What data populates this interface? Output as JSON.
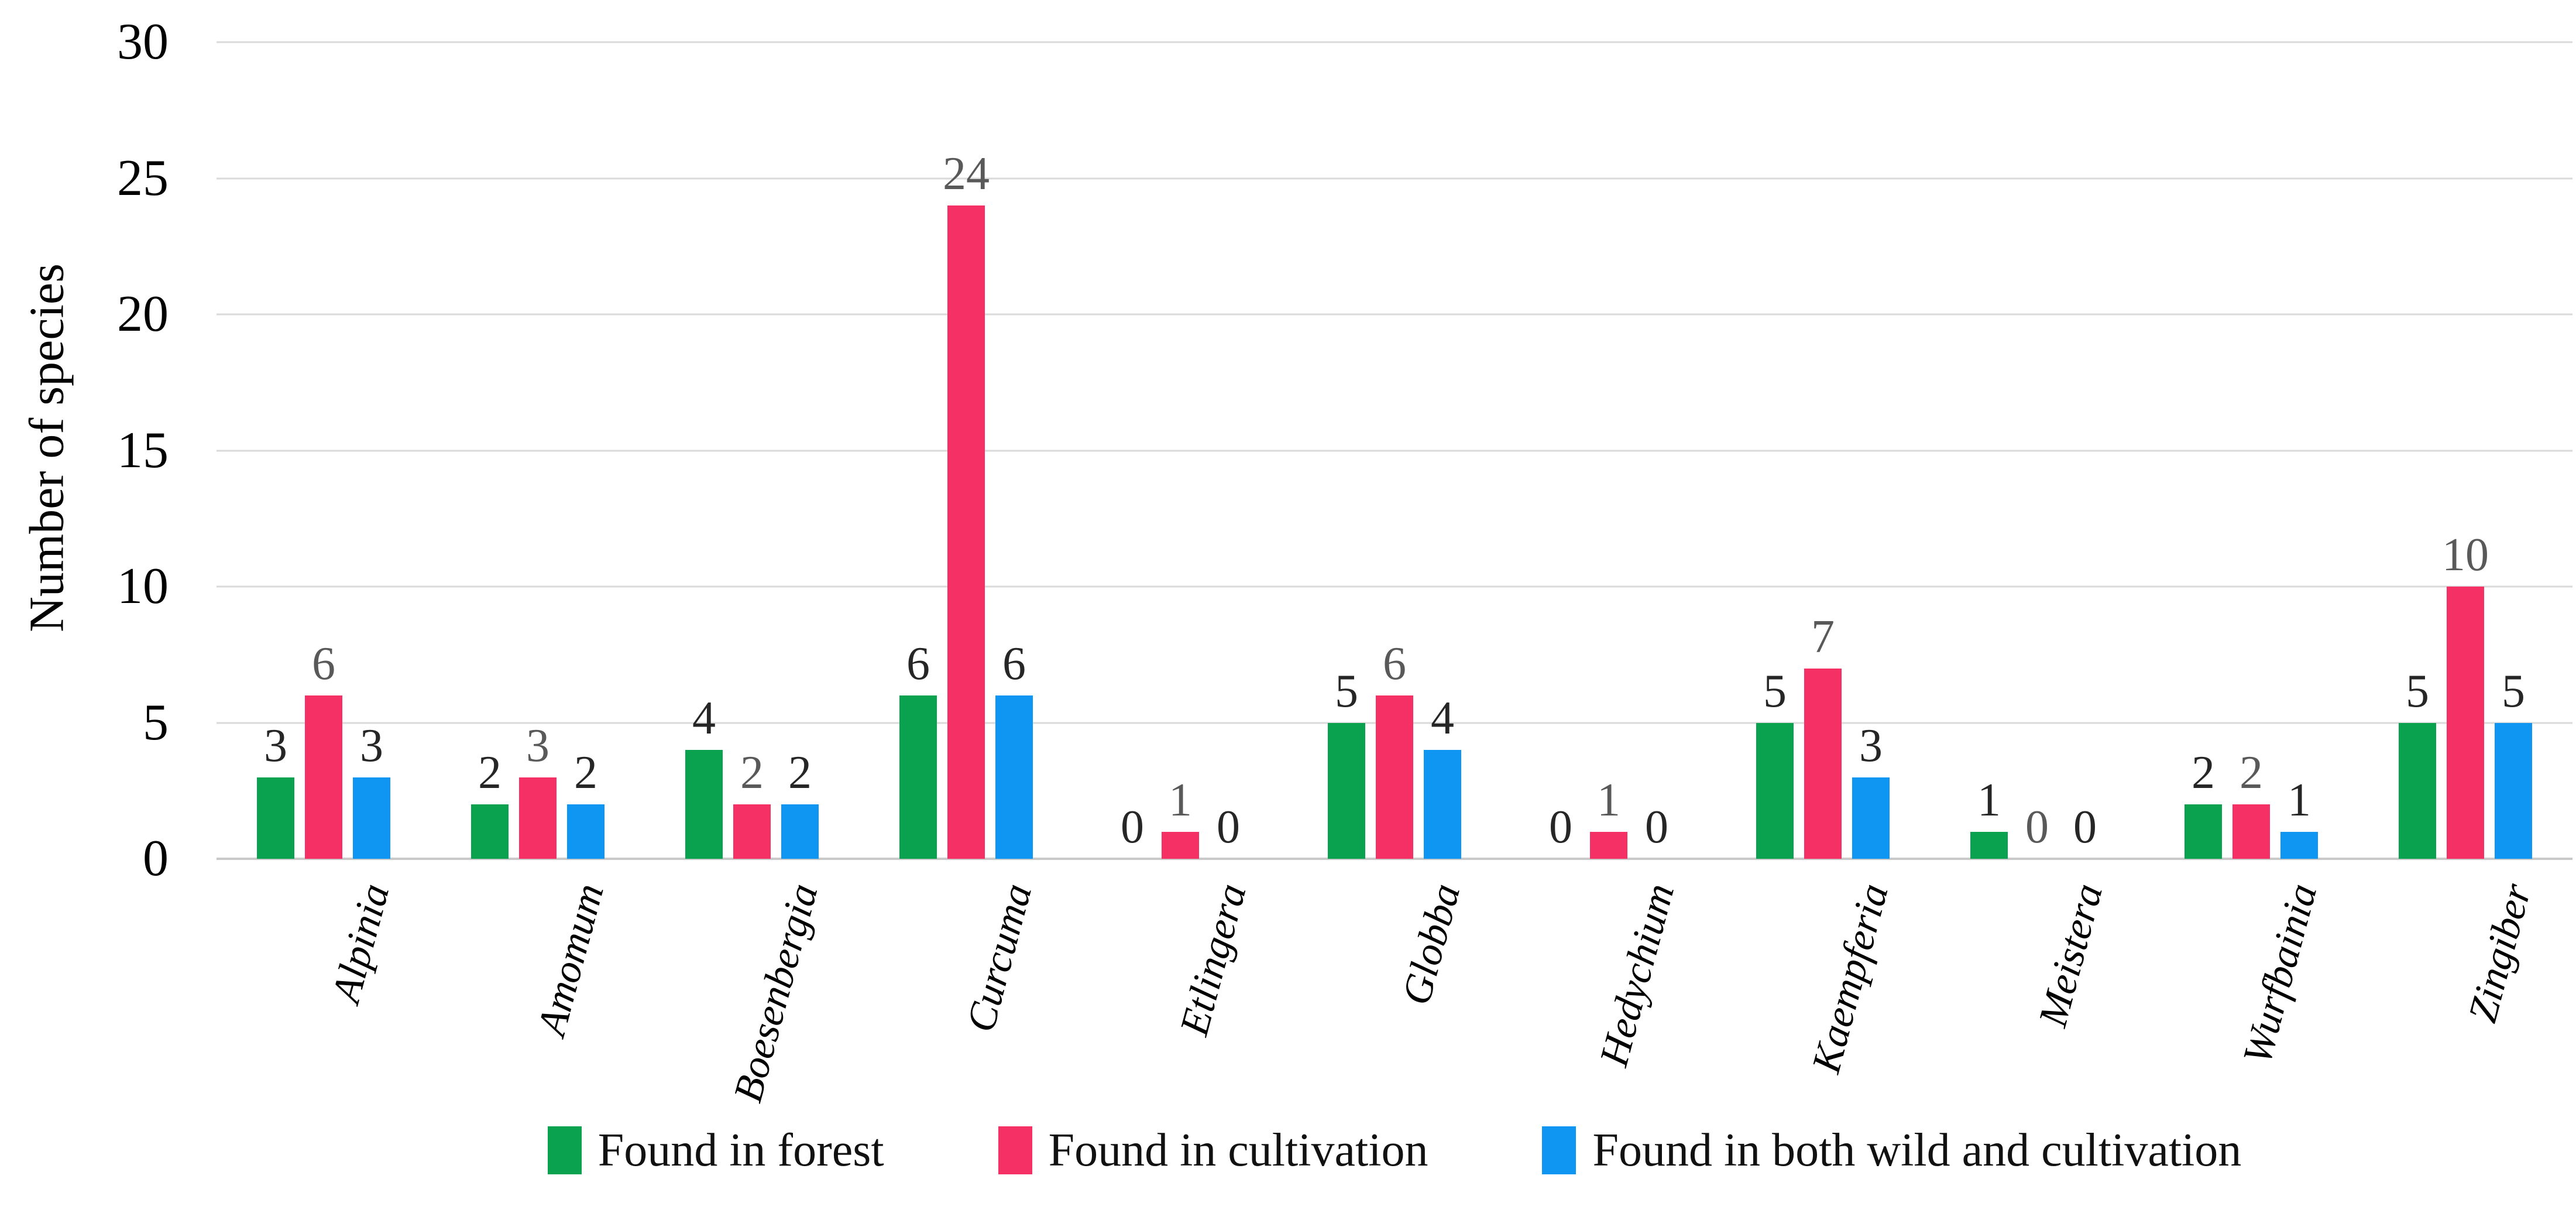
{
  "chart_data": {
    "type": "bar",
    "title": "",
    "ylabel": "Number of species",
    "xlabel": "",
    "ylim": [
      0,
      30
    ],
    "yticks": [
      0,
      5,
      10,
      15,
      20,
      25,
      30
    ],
    "grid": true,
    "gridline_color": "#dadada",
    "axis_line_color": "#c9c9c9",
    "legend_position": "bottom",
    "category_label_style": "italic-rotated",
    "data_labels": true,
    "categories": [
      "Alpinia",
      "Amomum",
      "Boesenbergia",
      "Curcuma",
      "Etlingera",
      "Globba",
      "Hedychium",
      "Kaempferia",
      "Meistera",
      "Wurfbainia",
      "Zingiber"
    ],
    "series": [
      {
        "name": "Found in forest",
        "color": "#0AA24F",
        "label_color": "#262626",
        "values": [
          3,
          2,
          4,
          6,
          0,
          5,
          0,
          5,
          1,
          2,
          5
        ]
      },
      {
        "name": "Found in cultivation",
        "color": "#F43065",
        "label_color": "#595959",
        "values": [
          6,
          3,
          2,
          24,
          1,
          6,
          1,
          7,
          0,
          2,
          10
        ]
      },
      {
        "name": "Found in both wild and cultivation",
        "color": "#0E96F2",
        "label_color": "#262626",
        "values": [
          3,
          2,
          2,
          6,
          0,
          4,
          0,
          3,
          0,
          1,
          5
        ]
      }
    ]
  }
}
